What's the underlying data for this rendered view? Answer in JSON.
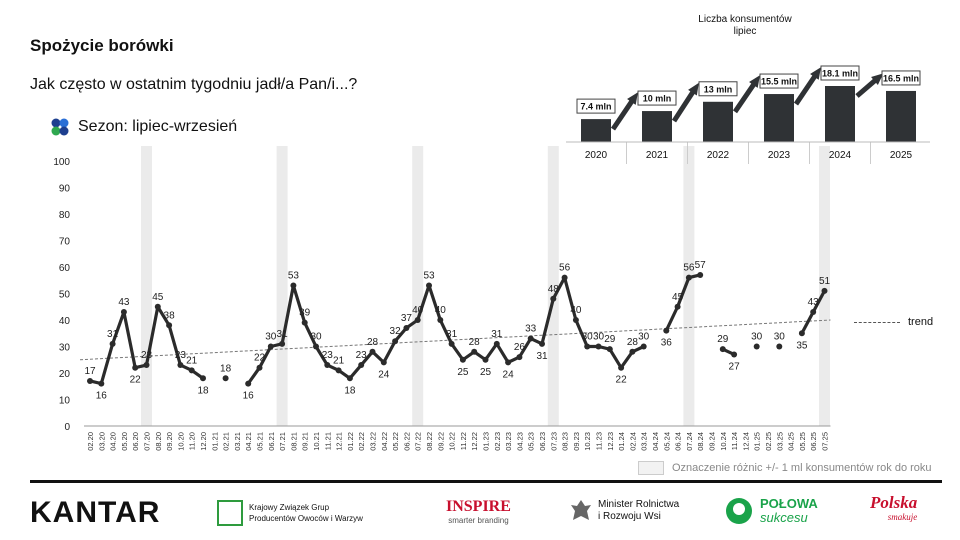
{
  "title": "Spożycie borówki",
  "subtitle": "Jak często w ostatnim tygodniu jadł/a Pan/i...?",
  "season_label": "Sezon: lipiec-wrzesień",
  "colors": {
    "line": "#2b2b2b",
    "highlight": "#ebebeb",
    "inset_bar": "#2f3235",
    "trend": "#777777"
  },
  "chart_data": [
    {
      "type": "line",
      "ylim": [
        0,
        100
      ],
      "yticks": [
        0,
        10,
        20,
        30,
        40,
        50,
        60,
        70,
        80,
        90,
        100
      ],
      "x": [
        "02.20",
        "03.20",
        "04.20",
        "05.20",
        "06.20",
        "07.20",
        "08.20",
        "09.20",
        "10.20",
        "11.20",
        "12.20",
        "01.21",
        "02.21",
        "03.21",
        "04.21",
        "05.21",
        "06.21",
        "07.21",
        "08.21",
        "09.21",
        "10.21",
        "11.21",
        "12.21",
        "01.22",
        "02.22",
        "03.22",
        "04.22",
        "05.22",
        "06.22",
        "07.22",
        "08.22",
        "09.22",
        "10.22",
        "11.22",
        "12.22",
        "01.23",
        "02.23",
        "03.23",
        "04.23",
        "05.23",
        "06.23",
        "07.23",
        "08.23",
        "09.23",
        "10.23",
        "11.23",
        "12.23",
        "01.24",
        "02.24",
        "03.24",
        "04.24",
        "05.24",
        "06.24",
        "07.24",
        "08.24",
        "09.24",
        "10.24",
        "11.24",
        "12.24",
        "01.25",
        "02.25",
        "03.25",
        "04.25",
        "05.25",
        "06.25",
        "07.25"
      ],
      "values": [
        17,
        16,
        31,
        43,
        22,
        23,
        45,
        38,
        23,
        21,
        18,
        null,
        18,
        null,
        16,
        22,
        30,
        31,
        53,
        39,
        30,
        23,
        21,
        18,
        23,
        28,
        24,
        32,
        37,
        40,
        53,
        40,
        31,
        25,
        28,
        25,
        31,
        24,
        26,
        33,
        31,
        48,
        56,
        40,
        30,
        30,
        29,
        22,
        28,
        30,
        null,
        36,
        45,
        56,
        57,
        null,
        29,
        27,
        null,
        30,
        null,
        30,
        null,
        35,
        43,
        51
      ],
      "point_labels": [
        "17",
        "16",
        "31",
        "43",
        "22",
        "23",
        "45",
        "38",
        "23",
        "21",
        "18",
        null,
        "18",
        null,
        "16",
        "22",
        "30",
        "31",
        "53",
        "39",
        "30",
        "23",
        "21",
        "18",
        "23",
        "28",
        "24",
        "32",
        "37",
        "40",
        "53",
        "40",
        "31",
        "25",
        "28",
        "25",
        "31",
        "24",
        "26",
        "33",
        "31",
        "48",
        "56",
        "40",
        "30",
        "30",
        "29",
        "22",
        "28",
        "30",
        null,
        "36",
        "45",
        "56",
        "57",
        null,
        "29",
        "27",
        null,
        "30",
        null,
        "30",
        null,
        "35",
        "43",
        "51"
      ],
      "highlight_months": [
        "07.20",
        "07.21",
        "07.22",
        "07.23",
        "07.24",
        "07.25"
      ],
      "trend": {
        "label": "trend",
        "start": 25,
        "end": 40
      },
      "highlight_legend": "Oznaczenie różnic +/- 1 ml konsumentów rok do roku"
    },
    {
      "type": "bar",
      "title": "Liczba konsumentów",
      "subtitle": "lipiec",
      "categories": [
        "2020",
        "2021",
        "2022",
        "2023",
        "2024",
        "2025"
      ],
      "values": [
        7.4,
        10,
        13,
        15.5,
        18.1,
        16.5
      ],
      "value_labels": [
        "7.4 mln",
        "10 mln",
        "13 mln",
        "15.5 mln",
        "18.1 mln",
        "16.5 mln"
      ]
    }
  ],
  "logos": {
    "kantar": "KANTAR",
    "kzg_line1": "Krajowy Związek Grup",
    "kzg_line2": "Producentów Owoców i Warzyw",
    "inspire": "INSPIRE",
    "inspire_sub": "smarter branding",
    "minister_line1": "Minister Rolnictwa",
    "minister_line2": "i Rozwoju Wsi",
    "polowa_line1": "POŁOWA",
    "polowa_line2": "sukcesu",
    "polska": "Polska",
    "polska_sub": "smakuje"
  }
}
